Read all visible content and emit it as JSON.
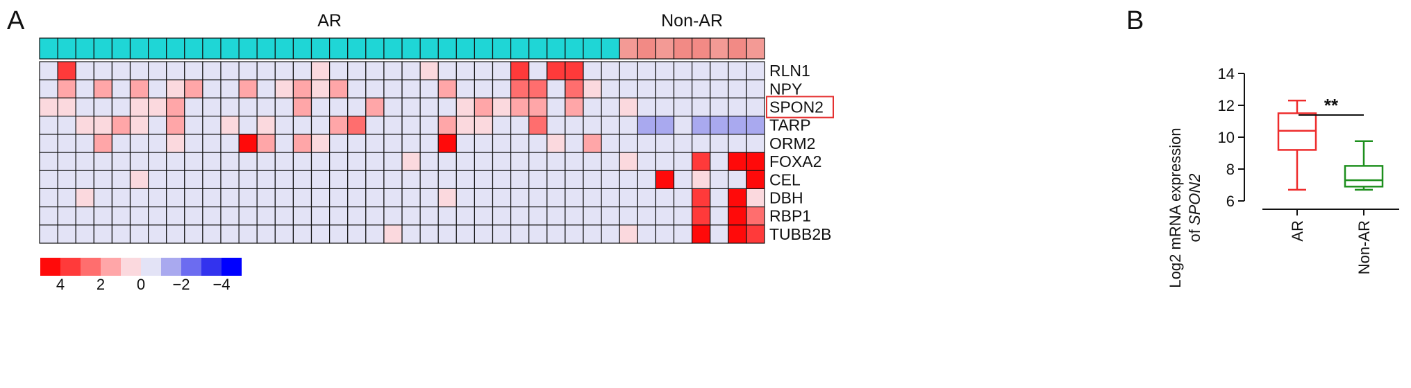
{
  "panels": {
    "a_label": "A",
    "b_label": "B"
  },
  "chart_data": [
    {
      "type": "heatmap",
      "groups": [
        {
          "name": "AR",
          "count": 32,
          "color": "#1fd6d6"
        },
        {
          "name": "Non-AR",
          "count": 8,
          "color": "#f39a95"
        }
      ],
      "group_color_values": [
        0,
        0,
        0,
        0,
        0,
        0,
        0,
        0,
        0,
        0,
        0,
        0,
        0,
        0,
        0,
        0,
        0,
        0,
        0,
        0,
        0,
        0,
        0,
        0,
        0,
        0,
        0,
        0,
        0,
        0,
        0,
        0,
        2,
        2.5,
        2,
        2.5,
        2.5,
        2,
        2.5,
        2
      ],
      "rows": [
        "RLN1",
        "NPY",
        "SPON2",
        "TARP",
        "ORM2",
        "FOXA2",
        "CEL",
        "DBH",
        "RBP1",
        "TUBB2B"
      ],
      "highlighted_row": "SPON2",
      "highlight_color": "#e53030",
      "values": [
        [
          0,
          3.2,
          0,
          0,
          0,
          0,
          0,
          0,
          0,
          0,
          0,
          0,
          0,
          0,
          0,
          0.8,
          0,
          0,
          0,
          0,
          0,
          0.8,
          0,
          0,
          0,
          0,
          3.2,
          0,
          3.6,
          3.6,
          0,
          0,
          0,
          0,
          0,
          0,
          0,
          0,
          0,
          0
        ],
        [
          0,
          1.6,
          0,
          1.6,
          0,
          1.6,
          0,
          0.8,
          1.6,
          0,
          0,
          1.6,
          0,
          0.8,
          1.6,
          0.8,
          1.6,
          0,
          0,
          0,
          0,
          0,
          1.6,
          0,
          0,
          0,
          2.2,
          2.2,
          0,
          2.2,
          0.8,
          0,
          0,
          0,
          0,
          0,
          0,
          0,
          0,
          0
        ],
        [
          0.8,
          0.8,
          0,
          0,
          0,
          0.8,
          0.8,
          1.6,
          0,
          0,
          0,
          0,
          0,
          0,
          1.6,
          0,
          0,
          0,
          1.6,
          0,
          0,
          0,
          0,
          0.8,
          1.6,
          0.8,
          1.6,
          1.6,
          0,
          1.6,
          0,
          0,
          0.8,
          0,
          0,
          0,
          0,
          0,
          0,
          0
        ],
        [
          0,
          0,
          0.8,
          0.8,
          1.6,
          0.8,
          0,
          1.6,
          0,
          0,
          0.8,
          0,
          0.8,
          0,
          0,
          0,
          1.6,
          2.2,
          0,
          0,
          0,
          0,
          1.6,
          0.8,
          0.8,
          0,
          0,
          2.2,
          0,
          0,
          0,
          0,
          0,
          -1.5,
          -1.5,
          0,
          -1.5,
          -1.5,
          -1.5,
          -1.5
        ],
        [
          0,
          0,
          0,
          1.6,
          0,
          0,
          0,
          0.8,
          0,
          0,
          0,
          4.5,
          1.6,
          0,
          1.6,
          0.8,
          0,
          0,
          0,
          0,
          0,
          0,
          4.5,
          0,
          0,
          0,
          0,
          0,
          0.8,
          0,
          1.6,
          0,
          0,
          0,
          0,
          0,
          0,
          0,
          0,
          0
        ],
        [
          0,
          0,
          0,
          0,
          0,
          0,
          0,
          0,
          0,
          0,
          0,
          0,
          0,
          0,
          0,
          0,
          0,
          0,
          0,
          0,
          0.8,
          0,
          0,
          0,
          0,
          0,
          0,
          0,
          0,
          0,
          0,
          0,
          0.8,
          0,
          0,
          0,
          3.2,
          0,
          4.1,
          4.1
        ],
        [
          0,
          0,
          0,
          0,
          0,
          0.8,
          0,
          0,
          0,
          0,
          0,
          0,
          0,
          0,
          0,
          0,
          0,
          0,
          0,
          0,
          0,
          0,
          0,
          0,
          0,
          0,
          0,
          0,
          0,
          0,
          0,
          0,
          0,
          0,
          5,
          0,
          0.8,
          0,
          0,
          4.5
        ],
        [
          0,
          0,
          0.8,
          0,
          0,
          0,
          0,
          0,
          0,
          0,
          0,
          0,
          0,
          0,
          0,
          0,
          0,
          0,
          0,
          0,
          0,
          0,
          0.8,
          0,
          0,
          0,
          0,
          0,
          0,
          0,
          0,
          0,
          0,
          0,
          0,
          0,
          3.2,
          0,
          5,
          0.8
        ],
        [
          0,
          0,
          0,
          0,
          0,
          0,
          0,
          0,
          0,
          0,
          0,
          0,
          0,
          0,
          0,
          0,
          0,
          0,
          0,
          0,
          0,
          0,
          0,
          0,
          0,
          0,
          0,
          0,
          0,
          0,
          0,
          0,
          0,
          0,
          0,
          0,
          3.8,
          0,
          4.1,
          2.2
        ],
        [
          0,
          0,
          0,
          0,
          0,
          0,
          0,
          0,
          0,
          0,
          0,
          0,
          0,
          0,
          0,
          0,
          0,
          0,
          0,
          0.8,
          0,
          0,
          0,
          0,
          0,
          0,
          0,
          0,
          0,
          0,
          0,
          0,
          0.8,
          0,
          0,
          0,
          4.1,
          0,
          4.1,
          3.2
        ]
      ],
      "color_scale": {
        "steps": [
          "#ff0a0a",
          "#ff3a3a",
          "#ff6e6e",
          "#ffa6a8",
          "#fbd9de",
          "#e3e3f6",
          "#a9a9ef",
          "#6c6cf0",
          "#3333ee",
          "#0000ff"
        ],
        "step_values": [
          4.5,
          3.5,
          2.5,
          1.5,
          0.5,
          0,
          -1.5,
          -2.5,
          -3.5,
          -4.5
        ],
        "tick_labels": [
          "4",
          "2",
          "0",
          "−2",
          "−4"
        ]
      }
    },
    {
      "type": "box",
      "categories": [
        "AR",
        "Non-AR"
      ],
      "colors": [
        "#ee2b2b",
        "#1d8f1d"
      ],
      "boxes": [
        {
          "name": "AR",
          "min": 6.7,
          "q1": 9.2,
          "median": 10.4,
          "q3": 11.5,
          "max": 12.3
        },
        {
          "name": "Non-AR",
          "min": 6.7,
          "q1": 6.9,
          "median": 7.3,
          "q3": 8.2,
          "max": 9.75
        }
      ],
      "ylabel_line1": "Log2 mRNA expression",
      "ylabel_line2_prefix": "of ",
      "ylabel_line2_italic": "SPON2",
      "ylim": [
        6,
        14
      ],
      "yticks": [
        6,
        8,
        10,
        12,
        14
      ],
      "significance": "**"
    }
  ]
}
